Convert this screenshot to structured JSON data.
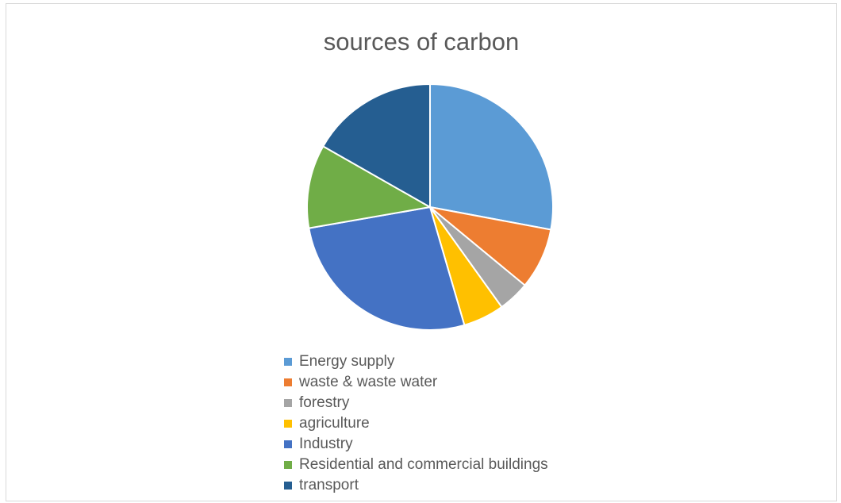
{
  "chart_data": {
    "type": "pie",
    "title": "sources of carbon",
    "legend_position": "bottom",
    "categories": [
      "Energy supply",
      "waste & waste water",
      "forestry",
      "agriculture",
      "Industry",
      "Residential and commercial buildings",
      "transport"
    ],
    "values": [
      28.5,
      8.2,
      4.2,
      5.5,
      27.3,
      11.2,
      17.1
    ],
    "colors": [
      "#5b9bd5",
      "#ed7d31",
      "#a5a5a5",
      "#ffc000",
      "#4472c4",
      "#70ad47",
      "#255e91"
    ]
  }
}
